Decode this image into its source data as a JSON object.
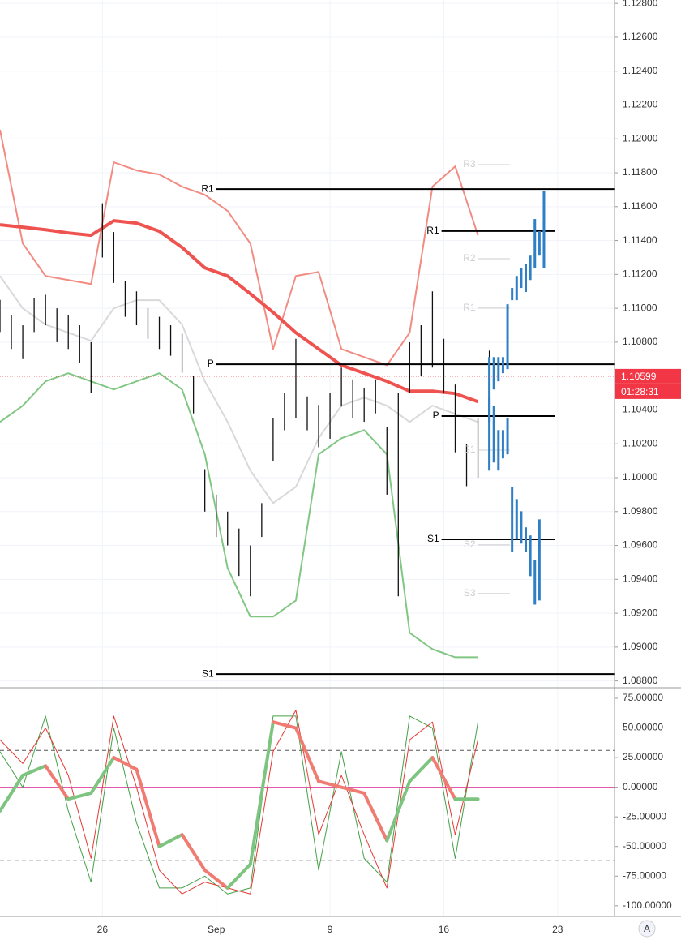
{
  "chart_data": [
    {
      "type": "range",
      "ylim": [
        1.0876,
        1.1282
      ],
      "xlim": [
        -4.5,
        22.5
      ],
      "grid": true,
      "color": "#111111",
      "yticks": [
        {
          "value": 1.128,
          "label": "1.12800"
        },
        {
          "value": 1.126,
          "label": "1.12600"
        },
        {
          "value": 1.124,
          "label": "1.12400"
        },
        {
          "value": 1.122,
          "label": "1.12200"
        },
        {
          "value": 1.12,
          "label": "1.12000"
        },
        {
          "value": 1.118,
          "label": "1.11800"
        },
        {
          "value": 1.116,
          "label": "1.11600"
        },
        {
          "value": 1.114,
          "label": "1.11400"
        },
        {
          "value": 1.112,
          "label": "1.11200"
        },
        {
          "value": 1.11,
          "label": "1.11000"
        },
        {
          "value": 1.108,
          "label": "1.10800"
        },
        {
          "value": 1.106,
          "label": "1.10600"
        },
        {
          "value": 1.104,
          "label": "1.10400"
        },
        {
          "value": 1.102,
          "label": "1.10200"
        },
        {
          "value": 1.1,
          "label": "1.10000"
        },
        {
          "value": 1.098,
          "label": "1.09800"
        },
        {
          "value": 1.096,
          "label": "1.09600"
        },
        {
          "value": 1.094,
          "label": "1.09400"
        },
        {
          "value": 1.092,
          "label": "1.09200"
        },
        {
          "value": 1.09,
          "label": "1.09000"
        },
        {
          "value": 1.088,
          "label": "1.08800"
        }
      ],
      "xticks": [
        {
          "value": 0,
          "label": "26"
        },
        {
          "value": 5,
          "label": "Sep"
        },
        {
          "value": 10,
          "label": "9"
        },
        {
          "value": 15,
          "label": "16"
        },
        {
          "value": 20,
          "label": "23"
        }
      ],
      "x": [
        -4.5,
        -4,
        -3.5,
        -3,
        -2.5,
        -2,
        -1.5,
        -1,
        -0.5,
        0,
        0.5,
        1,
        1.5,
        2,
        2.5,
        3,
        3.5,
        4,
        4.5,
        5,
        5.5,
        6,
        6.5,
        7,
        7.5,
        8,
        8.5,
        9,
        9.5,
        10,
        10.5,
        11,
        11.5,
        12,
        12.5,
        13,
        13.5,
        14,
        14.5,
        15,
        15.5,
        16,
        16.5,
        17
      ],
      "high": [
        1.1105,
        1.1096,
        1.109,
        1.1106,
        1.1108,
        1.11,
        1.1096,
        1.109,
        1.108,
        1.1162,
        1.1145,
        1.1116,
        1.111,
        1.11,
        1.1095,
        1.109,
        1.1085,
        1.106,
        1.1005,
        1.099,
        1.098,
        1.097,
        1.096,
        1.0985,
        1.1035,
        1.105,
        1.1082,
        1.1048,
        1.1043,
        1.105,
        1.1065,
        1.1058,
        1.1053,
        1.1058,
        1.103,
        1.105,
        1.108,
        1.109,
        1.111,
        1.1082,
        1.1055,
        1.102,
        1.1035,
        1.1075
      ],
      "low": [
        1.1086,
        1.1076,
        1.107,
        1.1086,
        1.109,
        1.108,
        1.1076,
        1.1068,
        1.105,
        1.113,
        1.1115,
        1.1095,
        1.109,
        1.1082,
        1.1076,
        1.1072,
        1.1062,
        1.1038,
        1.098,
        1.0965,
        1.096,
        1.0942,
        1.093,
        1.0965,
        1.101,
        1.1028,
        1.1035,
        1.1028,
        1.1018,
        1.1023,
        1.1042,
        1.1035,
        1.1033,
        1.1038,
        1.099,
        1.093,
        1.105,
        1.106,
        1.1065,
        1.105,
        1.1015,
        1.0995,
        1.1,
        1.104
      ],
      "overlay_x": [
        -4.5,
        -3.5,
        -2.5,
        -1.5,
        -0.5,
        0.5,
        1.5,
        2.5,
        3.5,
        4.5,
        5.5,
        6.5,
        7.5,
        8.5,
        9.5,
        10.5,
        11.5,
        12.5,
        13.5,
        14.5,
        15.5,
        16.5
      ],
      "overlays": [
        {
          "color": "#d9d9d9",
          "width": 2,
          "values": [
            1.11191,
            1.11,
            1.10904,
            1.10856,
            1.10808,
            1.11,
            1.11048,
            1.11048,
            1.10904,
            1.10569,
            1.10329,
            1.10042,
            1.0985,
            1.09946,
            1.10233,
            1.10425,
            1.10473,
            1.10425,
            1.10329,
            1.10425,
            1.10377,
            1.10329
          ]
        },
        {
          "color": "#f28b82",
          "width": 2,
          "values": [
            1.12054,
            1.11383,
            1.11191,
            1.11167,
            1.11143,
            1.11862,
            1.11814,
            1.1179,
            1.11718,
            1.1167,
            1.11575,
            1.11383,
            1.1076,
            1.11191,
            1.11215,
            1.1076,
            1.10712,
            1.10664,
            1.10856,
            1.11718,
            1.11838,
            1.11431
          ]
        },
        {
          "color": "#81c784",
          "width": 2,
          "values": [
            1.10329,
            1.10425,
            1.10569,
            1.10617,
            1.10569,
            1.10521,
            1.10569,
            1.10617,
            1.10521,
            1.10138,
            1.09467,
            1.0918,
            1.0918,
            1.09275,
            1.10138,
            1.10233,
            1.10281,
            1.10138,
            1.09084,
            1.08988,
            1.0894,
            1.0894
          ]
        },
        {
          "color": "#ef5350",
          "width": 4,
          "values": [
            1.11493,
            1.11479,
            1.11464,
            1.11445,
            1.11431,
            1.11517,
            1.11503,
            1.11455,
            1.11359,
            1.11239,
            1.11191,
            1.11086,
            1.10976,
            1.10856,
            1.1076,
            1.10664,
            1.10617,
            1.10569,
            1.10511,
            1.10511,
            1.10497,
            1.10449
          ]
        }
      ],
      "projections": [
        {
          "color": "#2f7fc6",
          "x": [
            17,
            17.2,
            17.4,
            17.6,
            17.8,
            18,
            18.2,
            18.4,
            18.6,
            18.8,
            19,
            19.2,
            19.4
          ],
          "high": [
            1.10712,
            1.10712,
            1.10712,
            1.10712,
            1.11024,
            1.1112,
            1.11191,
            1.11239,
            1.11263,
            1.11311,
            1.11527,
            1.11455,
            1.11694
          ],
          "low": [
            1.10329,
            1.10521,
            1.10569,
            1.10617,
            1.10641,
            1.11048,
            1.11048,
            1.1112,
            1.11096,
            1.11167,
            1.11239,
            1.11311,
            1.11239
          ]
        },
        {
          "color": "#2f7fc6",
          "x": [
            17,
            17.2,
            17.4,
            17.6,
            17.8,
            18,
            18.2,
            18.4,
            18.6,
            18.8,
            19,
            19.2
          ],
          "high": [
            1.10473,
            1.10425,
            1.10281,
            1.10281,
            1.10353,
            1.09946,
            1.09874,
            1.09802,
            1.09707,
            1.09659,
            1.09515,
            1.09754
          ],
          "low": [
            1.10042,
            1.1009,
            1.10042,
            1.10114,
            1.10138,
            1.09563,
            1.09635,
            1.09611,
            1.09563,
            1.09419,
            1.09251,
            1.09275
          ]
        }
      ],
      "pivots": [
        {
          "label": "R1",
          "value": 1.11704,
          "xrange": [
            5,
            22.5
          ],
          "color": "#000000"
        },
        {
          "label": "P",
          "value": 1.1067,
          "xrange": [
            5,
            22.5
          ],
          "color": "#000000"
        },
        {
          "label": "S1",
          "value": 1.08841,
          "xrange": [
            5,
            22.5
          ],
          "color": "#000000"
        },
        {
          "label": "R1",
          "value": 1.11456,
          "xrange": [
            14.9,
            19.9
          ],
          "color": "#000000"
        },
        {
          "label": "P",
          "value": 1.10364,
          "xrange": [
            14.9,
            19.9
          ],
          "color": "#000000"
        },
        {
          "label": "S1",
          "value": 1.09636,
          "xrange": [
            14.9,
            19.9
          ],
          "color": "#000000"
        },
        {
          "label": "R3",
          "value": 1.11848,
          "xrange": [
            16.5,
            17.9
          ],
          "color": "#cccccc"
        },
        {
          "label": "R2",
          "value": 1.11293,
          "xrange": [
            16.5,
            17.9
          ],
          "color": "#cccccc"
        },
        {
          "label": "R1",
          "value": 1.11001,
          "xrange": [
            16.5,
            17.9
          ],
          "color": "#cccccc"
        },
        {
          "label": "S1",
          "value": 1.10163,
          "xrange": [
            16.5,
            17.9
          ],
          "color": "#cccccc"
        },
        {
          "label": "S2",
          "value": 1.09603,
          "xrange": [
            16.5,
            17.9
          ],
          "color": "#cccccc"
        },
        {
          "label": "S3",
          "value": 1.09316,
          "xrange": [
            16.5,
            17.9
          ],
          "color": "#cccccc"
        }
      ],
      "last_price": 1.10599,
      "countdown": "01:28:31",
      "last_color": "#f23645"
    },
    {
      "type": "oscillator",
      "ylim": [
        -109,
        82.5
      ],
      "xlim": [
        -4.5,
        22.5
      ],
      "yticks": [
        {
          "value": 75,
          "label": "75.00000"
        },
        {
          "value": 50,
          "label": "50.00000"
        },
        {
          "value": 25,
          "label": "25.00000"
        },
        {
          "value": 0,
          "label": "0.00000"
        },
        {
          "value": -25,
          "label": "-25.00000"
        },
        {
          "value": -50,
          "label": "-50.00000"
        },
        {
          "value": -75,
          "label": "-75.00000"
        },
        {
          "value": -100,
          "label": "-100.00000"
        }
      ],
      "x": [
        -4.5,
        -3.5,
        -2.5,
        -1.5,
        -0.5,
        0.5,
        1.5,
        2.5,
        3.5,
        4.5,
        5.5,
        6.5,
        7.5,
        8.5,
        9.5,
        10.5,
        11.5,
        12.5,
        13.5,
        14.5,
        15.5,
        16.5
      ],
      "values": [
        -20,
        10,
        18,
        -10,
        -5,
        25,
        15,
        -50,
        -40,
        -70,
        -85,
        -65,
        55,
        50,
        5,
        0,
        -5,
        -45,
        5,
        25,
        -10,
        -10
      ],
      "up_color": "#7cc47f",
      "down_color": "#f07b72",
      "series": [
        {
          "color": "#43a047",
          "values": [
            30,
            0,
            60,
            -20,
            -80,
            50,
            -30,
            -85,
            -85,
            -75,
            -90,
            -85,
            60,
            60,
            -70,
            30,
            -60,
            -80,
            60,
            50,
            -60,
            55
          ]
        },
        {
          "color": "#e53935",
          "values": [
            40,
            20,
            50,
            10,
            -60,
            60,
            0,
            -70,
            -90,
            -80,
            -85,
            -90,
            30,
            65,
            -40,
            10,
            -40,
            -85,
            40,
            55,
            -40,
            40
          ]
        }
      ],
      "levels": [
        31,
        0,
        -62
      ],
      "level_colors": [
        "#555555",
        "#e040a0",
        "#555555"
      ]
    }
  ],
  "ui": {
    "auto_button": "A"
  }
}
